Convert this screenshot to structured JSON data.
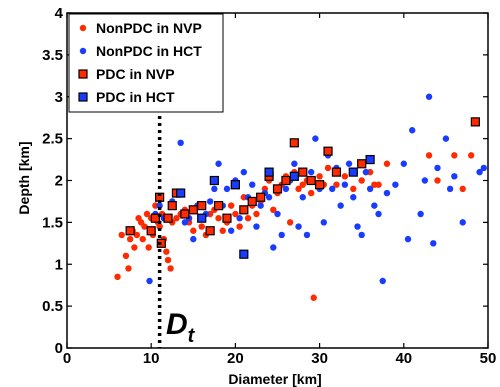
{
  "chart_data": {
    "type": "scatter",
    "title": "",
    "xlabel": "Diameter [km]",
    "ylabel": "Depth [km]",
    "xlim": [
      0,
      50
    ],
    "ylim": [
      0,
      4
    ],
    "xticks": [
      "0",
      "10",
      "20",
      "30",
      "40",
      "50"
    ],
    "yticks": [
      "0",
      "0.5",
      "1",
      "1.5",
      "2",
      "2.5",
      "3",
      "3.5",
      "4"
    ],
    "grid": false,
    "legend_position": "top-left",
    "vline": {
      "x": 11,
      "style": "dotted",
      "label_main": "D",
      "label_sub": "t"
    },
    "series": [
      {
        "name": "NonPDC in NVP",
        "marker": "circle",
        "color": "#ff2a00",
        "points": [
          [
            6,
            0.85
          ],
          [
            6.5,
            1.35
          ],
          [
            7,
            1.1
          ],
          [
            7.3,
            0.95
          ],
          [
            7.5,
            1.3
          ],
          [
            7.8,
            1.4
          ],
          [
            8,
            1.2
          ],
          [
            8.3,
            1.35
          ],
          [
            8.5,
            1.55
          ],
          [
            8.8,
            1.5
          ],
          [
            9,
            1.3
          ],
          [
            9.2,
            1.45
          ],
          [
            9.5,
            1.6
          ],
          [
            9.7,
            1.2
          ],
          [
            10,
            1.55
          ],
          [
            10.2,
            1.35
          ],
          [
            10.5,
            1.7
          ],
          [
            10.8,
            1.5
          ],
          [
            11,
            1.45
          ],
          [
            11.3,
            1.6
          ],
          [
            11.5,
            1.3
          ],
          [
            11.8,
            1.15
          ],
          [
            12,
            1.05
          ],
          [
            12.3,
            0.95
          ],
          [
            12.5,
            1.5
          ],
          [
            13,
            1.55
          ],
          [
            13.5,
            1.6
          ],
          [
            14,
            1.65
          ],
          [
            14.5,
            1.5
          ],
          [
            15,
            1.4
          ],
          [
            15.5,
            1.7
          ],
          [
            16,
            1.45
          ],
          [
            16.5,
            1.35
          ],
          [
            17,
            1.6
          ],
          [
            17.5,
            1.65
          ],
          [
            18,
            1.55
          ],
          [
            18.5,
            1.4
          ],
          [
            19,
            1.5
          ],
          [
            19.5,
            1.7
          ],
          [
            20,
            1.6
          ],
          [
            20.5,
            1.45
          ],
          [
            21,
            1.8
          ],
          [
            21.5,
            1.55
          ],
          [
            22,
            1.7
          ],
          [
            22.5,
            1.6
          ],
          [
            23,
            1.75
          ],
          [
            23.5,
            1.9
          ],
          [
            24,
            2.0
          ],
          [
            24.5,
            1.65
          ],
          [
            25,
            1.85
          ],
          [
            25.5,
            1.95
          ],
          [
            26,
            2.05
          ],
          [
            26.5,
            1.5
          ],
          [
            27,
            2.1
          ],
          [
            27.5,
            1.9
          ],
          [
            28,
            1.95
          ],
          [
            28.5,
            2.0
          ],
          [
            29,
            1.85
          ],
          [
            29.3,
            0.6
          ],
          [
            30,
            2.05
          ],
          [
            30.5,
            1.95
          ],
          [
            31,
            2.15
          ],
          [
            32,
            1.95
          ],
          [
            33,
            2.05
          ],
          [
            34,
            1.9
          ],
          [
            35,
            2.0
          ],
          [
            36,
            2.1
          ],
          [
            36.5,
            1.95
          ],
          [
            37,
            1.95
          ],
          [
            38,
            2.2
          ],
          [
            43,
            2.3
          ],
          [
            44,
            2.0
          ],
          [
            46,
            2.3
          ],
          [
            47,
            1.9
          ],
          [
            48,
            2.3
          ]
        ]
      },
      {
        "name": "NonPDC in HCT",
        "marker": "circle",
        "color": "#1a3cff",
        "points": [
          [
            9.8,
            0.8
          ],
          [
            10.5,
            1.6
          ],
          [
            11,
            1.7
          ],
          [
            11.5,
            1.55
          ],
          [
            12.5,
            1.75
          ],
          [
            13,
            1.85
          ],
          [
            13.5,
            2.45
          ],
          [
            14,
            1.5
          ],
          [
            14.5,
            1.55
          ],
          [
            15,
            1.3
          ],
          [
            15.5,
            1.7
          ],
          [
            16,
            1.55
          ],
          [
            16.5,
            1.6
          ],
          [
            17,
            1.75
          ],
          [
            17.5,
            1.9
          ],
          [
            18,
            2.2
          ],
          [
            18.5,
            1.7
          ],
          [
            19,
            1.9
          ],
          [
            19.5,
            1.4
          ],
          [
            20,
            2.0
          ],
          [
            20.5,
            1.55
          ],
          [
            21,
            2.1
          ],
          [
            21.5,
            1.8
          ],
          [
            22,
            1.95
          ],
          [
            22.5,
            1.45
          ],
          [
            23,
            1.7
          ],
          [
            23.5,
            1.85
          ],
          [
            24,
            1.8
          ],
          [
            24.5,
            1.2
          ],
          [
            25,
            1.6
          ],
          [
            25.5,
            1.35
          ],
          [
            26,
            1.9
          ],
          [
            26.5,
            2.0
          ],
          [
            27,
            2.2
          ],
          [
            27.5,
            1.45
          ],
          [
            28,
            1.8
          ],
          [
            28.5,
            1.35
          ],
          [
            29,
            2.1
          ],
          [
            29.5,
            2.5
          ],
          [
            30,
            1.9
          ],
          [
            30.5,
            1.5
          ],
          [
            31,
            2.3
          ],
          [
            31.5,
            1.9
          ],
          [
            32,
            2.15
          ],
          [
            32.5,
            1.7
          ],
          [
            33,
            1.95
          ],
          [
            33.5,
            2.2
          ],
          [
            34,
            1.8
          ],
          [
            34.5,
            1.45
          ],
          [
            35,
            1.35
          ],
          [
            35.5,
            2.1
          ],
          [
            36,
            1.9
          ],
          [
            36.5,
            1.7
          ],
          [
            37,
            1.6
          ],
          [
            37.5,
            0.8
          ],
          [
            38,
            1.85
          ],
          [
            39,
            1.95
          ],
          [
            40,
            2.2
          ],
          [
            40.5,
            1.3
          ],
          [
            41,
            2.6
          ],
          [
            42,
            1.6
          ],
          [
            42.5,
            2.0
          ],
          [
            43,
            3.0
          ],
          [
            43.5,
            1.25
          ],
          [
            44,
            2.15
          ],
          [
            45,
            2.5
          ],
          [
            45.5,
            1.9
          ],
          [
            46,
            2.05
          ],
          [
            47,
            1.5
          ],
          [
            49,
            2.1
          ],
          [
            49.5,
            2.15
          ]
        ]
      },
      {
        "name": "PDC in NVP",
        "marker": "square",
        "color": "#ff2a00",
        "points": [
          [
            7.5,
            1.4
          ],
          [
            10,
            1.4
          ],
          [
            10.5,
            1.55
          ],
          [
            11,
            1.8
          ],
          [
            11.2,
            1.25
          ],
          [
            12,
            1.55
          ],
          [
            12.5,
            1.7
          ],
          [
            13,
            1.85
          ],
          [
            14,
            1.6
          ],
          [
            15,
            1.65
          ],
          [
            16,
            1.7
          ],
          [
            17,
            1.4
          ],
          [
            18,
            1.7
          ],
          [
            19,
            1.55
          ],
          [
            20,
            1.95
          ],
          [
            21,
            1.65
          ],
          [
            22,
            1.75
          ],
          [
            23,
            1.8
          ],
          [
            24,
            2.05
          ],
          [
            25,
            1.9
          ],
          [
            26,
            2.0
          ],
          [
            27,
            2.45
          ],
          [
            28,
            2.1
          ],
          [
            29,
            2.0
          ],
          [
            30,
            1.95
          ],
          [
            31,
            2.35
          ],
          [
            32,
            2.1
          ],
          [
            35,
            2.2
          ],
          [
            48.5,
            2.7
          ]
        ]
      },
      {
        "name": "PDC in HCT",
        "marker": "square",
        "color": "#1a3cff",
        "points": [
          [
            13.5,
            1.85
          ],
          [
            16,
            1.55
          ],
          [
            17.5,
            2.0
          ],
          [
            20,
            1.95
          ],
          [
            21,
            1.12
          ],
          [
            24,
            2.1
          ],
          [
            27,
            2.05
          ],
          [
            34,
            2.1
          ],
          [
            36,
            2.25
          ]
        ]
      }
    ]
  }
}
